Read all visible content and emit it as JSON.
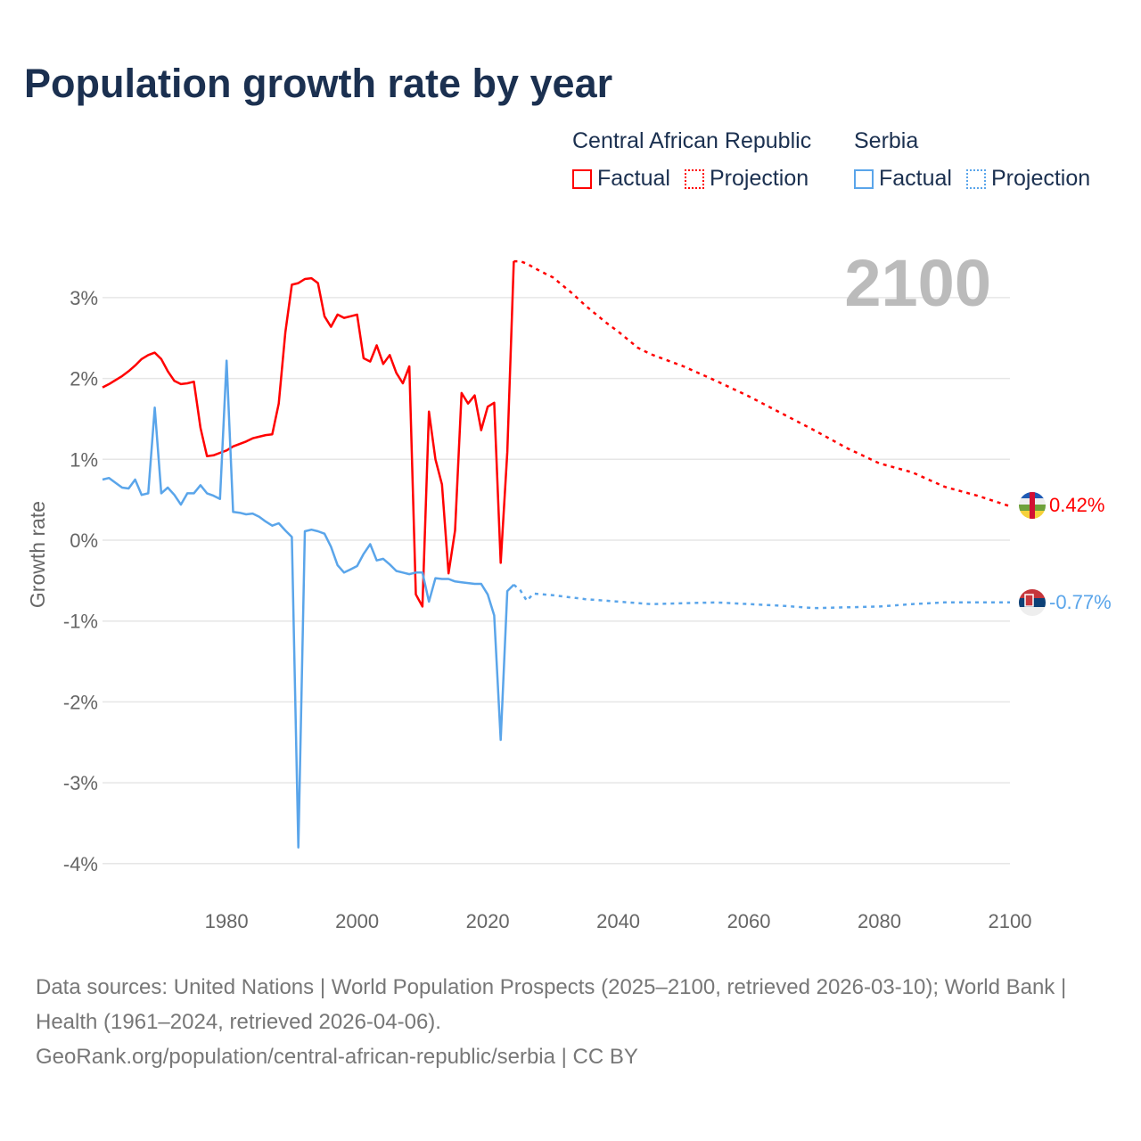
{
  "title": "Population growth rate by year",
  "legend": {
    "groups": [
      {
        "name": "Central African Republic",
        "color": "#ff0000",
        "factual": "Factual",
        "projection": "Projection"
      },
      {
        "name": "Serbia",
        "color": "#5aa5ea",
        "factual": "Factual",
        "projection": "Projection"
      }
    ]
  },
  "year_label": "2100",
  "chart_data": {
    "type": "line",
    "title": "Population growth rate by year",
    "xlabel": "",
    "ylabel": "Growth rate",
    "xlim": [
      1961,
      2100
    ],
    "ylim": [
      -4,
      3.5
    ],
    "x_ticks": [
      "1980",
      "2000",
      "2020",
      "2040",
      "2060",
      "2080",
      "2100"
    ],
    "y_ticks": [
      "3%",
      "2%",
      "1%",
      "0%",
      "-1%",
      "-2%",
      "-3%",
      "-4%"
    ],
    "y_tick_values": [
      3,
      2,
      1,
      0,
      -1,
      -2,
      -3,
      -4
    ],
    "x_tick_values": [
      1980,
      2000,
      2020,
      2040,
      2060,
      2080,
      2100
    ],
    "grid": true,
    "series": [
      {
        "name": "Central African Republic",
        "color": "#ff0000",
        "end_label": "0.42%",
        "factual": {
          "x": [
            1961,
            1962,
            1963,
            1964,
            1965,
            1966,
            1967,
            1968,
            1969,
            1970,
            1971,
            1972,
            1973,
            1974,
            1975,
            1976,
            1977,
            1978,
            1979,
            1980,
            1981,
            1982,
            1983,
            1984,
            1985,
            1986,
            1987,
            1988,
            1989,
            1990,
            1991,
            1992,
            1993,
            1994,
            1995,
            1996,
            1997,
            1998,
            1999,
            2000,
            2001,
            2002,
            2003,
            2004,
            2005,
            2006,
            2007,
            2008,
            2009,
            2010,
            2011,
            2012,
            2013,
            2014,
            2015,
            2016,
            2017,
            2018,
            2019,
            2020,
            2021,
            2022,
            2023,
            2024
          ],
          "y": [
            1.89,
            1.93,
            1.98,
            2.03,
            2.09,
            2.16,
            2.24,
            2.29,
            2.32,
            2.24,
            2.09,
            1.97,
            1.93,
            1.94,
            1.96,
            1.39,
            1.04,
            1.05,
            1.08,
            1.11,
            1.16,
            1.19,
            1.22,
            1.26,
            1.28,
            1.3,
            1.31,
            1.69,
            2.57,
            3.16,
            3.18,
            3.23,
            3.24,
            3.18,
            2.77,
            2.64,
            2.79,
            2.75,
            2.77,
            2.79,
            2.25,
            2.21,
            2.41,
            2.18,
            2.29,
            2.07,
            1.94,
            2.15,
            -0.67,
            -0.82,
            1.59,
            1.0,
            0.69,
            -0.41,
            0.12,
            1.82,
            1.69,
            1.79,
            1.36,
            1.65,
            1.7,
            -0.28,
            1.09,
            3.45
          ]
        },
        "projection": {
          "x": [
            2024,
            2025,
            2026,
            2028,
            2030,
            2033,
            2035,
            2038,
            2040,
            2043,
            2045,
            2050,
            2055,
            2060,
            2065,
            2070,
            2075,
            2080,
            2085,
            2090,
            2095,
            2100
          ],
          "y": [
            3.45,
            3.45,
            3.42,
            3.33,
            3.25,
            3.05,
            2.9,
            2.7,
            2.58,
            2.38,
            2.3,
            2.15,
            1.97,
            1.78,
            1.57,
            1.36,
            1.14,
            0.95,
            0.84,
            0.66,
            0.55,
            0.42
          ]
        }
      },
      {
        "name": "Serbia",
        "color": "#5aa5ea",
        "end_label": "-0.77%",
        "factual": {
          "x": [
            1961,
            1962,
            1963,
            1964,
            1965,
            1966,
            1967,
            1968,
            1969,
            1970,
            1971,
            1972,
            1973,
            1974,
            1975,
            1976,
            1977,
            1978,
            1979,
            1980,
            1981,
            1982,
            1983,
            1984,
            1985,
            1986,
            1987,
            1988,
            1989,
            1990,
            1991,
            1992,
            1993,
            1994,
            1995,
            1996,
            1997,
            1998,
            1999,
            2000,
            2001,
            2002,
            2003,
            2004,
            2005,
            2006,
            2007,
            2008,
            2009,
            2010,
            2011,
            2012,
            2013,
            2014,
            2015,
            2016,
            2017,
            2018,
            2019,
            2020,
            2021,
            2022,
            2023,
            2024
          ],
          "y": [
            0.75,
            0.77,
            0.71,
            0.65,
            0.64,
            0.75,
            0.56,
            0.58,
            1.64,
            0.58,
            0.65,
            0.56,
            0.44,
            0.58,
            0.58,
            0.68,
            0.58,
            0.55,
            0.51,
            2.22,
            0.35,
            0.34,
            0.32,
            0.33,
            0.29,
            0.23,
            0.18,
            0.21,
            0.12,
            0.04,
            -3.8,
            0.11,
            0.13,
            0.11,
            0.08,
            -0.08,
            -0.31,
            -0.4,
            -0.36,
            -0.32,
            -0.17,
            -0.05,
            -0.25,
            -0.23,
            -0.3,
            -0.38,
            -0.4,
            -0.42,
            -0.4,
            -0.4,
            -0.76,
            -0.47,
            -0.48,
            -0.48,
            -0.51,
            -0.52,
            -0.53,
            -0.54,
            -0.54,
            -0.67,
            -0.93,
            -2.47,
            -0.63,
            -0.55
          ]
        },
        "projection": {
          "x": [
            2024,
            2025,
            2026,
            2027,
            2030,
            2035,
            2040,
            2045,
            2050,
            2055,
            2060,
            2065,
            2070,
            2075,
            2080,
            2085,
            2090,
            2095,
            2100
          ],
          "y": [
            -0.55,
            -0.62,
            -0.75,
            -0.66,
            -0.68,
            -0.73,
            -0.76,
            -0.79,
            -0.78,
            -0.77,
            -0.79,
            -0.81,
            -0.84,
            -0.83,
            -0.82,
            -0.79,
            -0.77,
            -0.77,
            -0.77
          ]
        }
      }
    ]
  },
  "footer": {
    "sources": "Data sources: United Nations | World Population Prospects (2025–2100, retrieved 2026-03-10); World Bank | Health (1961–2024, retrieved 2026-04-06).",
    "credit": "GeoRank.org/population/central-african-republic/serbia | CC BY"
  }
}
